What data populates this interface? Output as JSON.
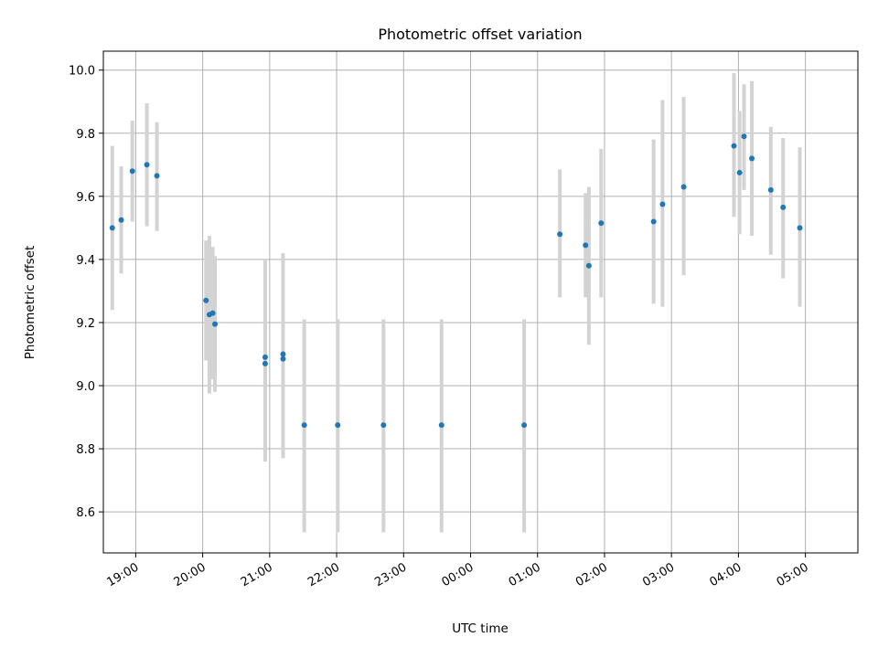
{
  "chart_data": {
    "type": "scatter",
    "title": "Photometric offset variation",
    "xlabel": "UTC time",
    "ylabel": "Photometric offset",
    "x_ticks": [
      "19:00",
      "20:00",
      "21:00",
      "22:00",
      "23:00",
      "00:00",
      "01:00",
      "02:00",
      "03:00",
      "04:00",
      "05:00"
    ],
    "y_ticks": [
      "8.6",
      "8.8",
      "9.0",
      "9.2",
      "9.4",
      "9.6",
      "9.8",
      "10.0"
    ],
    "xlim": [
      "18:31",
      "05:47"
    ],
    "ylim": [
      8.47,
      10.06
    ],
    "grid": true,
    "error_bar_color": "#d3d3d3",
    "point_color": "#1f77b4",
    "points": [
      {
        "x": "18:39",
        "y": 9.5,
        "ylow": 9.24,
        "yhigh": 9.76
      },
      {
        "x": "18:47",
        "y": 9.525,
        "ylow": 9.355,
        "yhigh": 9.695
      },
      {
        "x": "18:57",
        "y": 9.68,
        "ylow": 9.52,
        "yhigh": 9.84
      },
      {
        "x": "19:10",
        "y": 9.7,
        "ylow": 9.505,
        "yhigh": 9.895
      },
      {
        "x": "19:19",
        "y": 9.665,
        "ylow": 9.49,
        "yhigh": 9.835
      },
      {
        "x": "20:03",
        "y": 9.27,
        "ylow": 9.08,
        "yhigh": 9.46
      },
      {
        "x": "20:06",
        "y": 9.225,
        "ylow": 8.975,
        "yhigh": 9.475
      },
      {
        "x": "20:09",
        "y": 9.23,
        "ylow": 9.02,
        "yhigh": 9.44
      },
      {
        "x": "20:11",
        "y": 9.195,
        "ylow": 8.98,
        "yhigh": 9.41
      },
      {
        "x": "20:56",
        "y": 9.09,
        "ylow": 8.76,
        "yhigh": 9.4
      },
      {
        "x": "20:56",
        "y": 9.07,
        "ylow": 8.76,
        "yhigh": 9.38
      },
      {
        "x": "21:12",
        "y": 9.1,
        "ylow": 8.77,
        "yhigh": 9.42
      },
      {
        "x": "21:12",
        "y": 9.085,
        "ylow": 8.77,
        "yhigh": 9.4
      },
      {
        "x": "21:31",
        "y": 8.875,
        "ylow": 8.535,
        "yhigh": 9.21
      },
      {
        "x": "22:01",
        "y": 8.875,
        "ylow": 8.535,
        "yhigh": 9.21
      },
      {
        "x": "22:42",
        "y": 8.875,
        "ylow": 8.535,
        "yhigh": 9.21
      },
      {
        "x": "23:34",
        "y": 8.875,
        "ylow": 8.535,
        "yhigh": 9.21
      },
      {
        "x": "00:48",
        "y": 8.875,
        "ylow": 8.535,
        "yhigh": 9.21
      },
      {
        "x": "01:20",
        "y": 9.48,
        "ylow": 9.28,
        "yhigh": 9.685
      },
      {
        "x": "01:43",
        "y": 9.445,
        "ylow": 9.28,
        "yhigh": 9.61
      },
      {
        "x": "01:46",
        "y": 9.38,
        "ylow": 9.13,
        "yhigh": 9.63
      },
      {
        "x": "01:57",
        "y": 9.515,
        "ylow": 9.28,
        "yhigh": 9.75
      },
      {
        "x": "02:44",
        "y": 9.52,
        "ylow": 9.26,
        "yhigh": 9.78
      },
      {
        "x": "02:52",
        "y": 9.575,
        "ylow": 9.25,
        "yhigh": 9.905
      },
      {
        "x": "03:11",
        "y": 9.63,
        "ylow": 9.35,
        "yhigh": 9.915
      },
      {
        "x": "03:56",
        "y": 9.76,
        "ylow": 9.535,
        "yhigh": 9.99
      },
      {
        "x": "04:01",
        "y": 9.675,
        "ylow": 9.48,
        "yhigh": 9.87
      },
      {
        "x": "04:05",
        "y": 9.79,
        "ylow": 9.62,
        "yhigh": 9.955
      },
      {
        "x": "04:12",
        "y": 9.72,
        "ylow": 9.475,
        "yhigh": 9.965
      },
      {
        "x": "04:29",
        "y": 9.62,
        "ylow": 9.415,
        "yhigh": 9.82
      },
      {
        "x": "04:40",
        "y": 9.565,
        "ylow": 9.34,
        "yhigh": 9.785
      },
      {
        "x": "04:55",
        "y": 9.5,
        "ylow": 9.25,
        "yhigh": 9.755
      }
    ]
  }
}
